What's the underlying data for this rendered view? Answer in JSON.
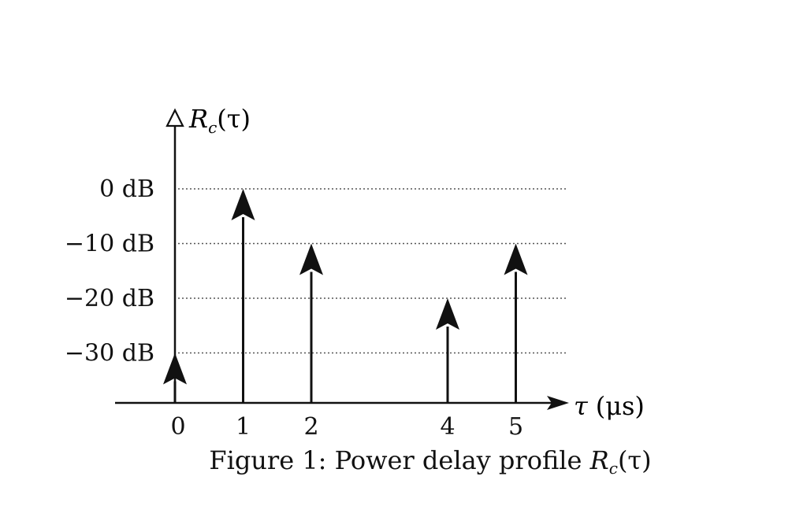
{
  "chart_data": {
    "type": "stem",
    "x": [
      0,
      1,
      2,
      4,
      5
    ],
    "values": [
      -30,
      0,
      -10,
      -20,
      -10
    ],
    "x_ticks": [
      "0",
      "1",
      "2",
      "4",
      "5"
    ],
    "y_ticks": [
      0,
      -10,
      -20,
      -30
    ],
    "y_tick_labels": [
      "0 dB",
      "−10 dB",
      "−20 dB",
      "−30 dB"
    ],
    "xlabel": {
      "symbol": "τ",
      "unit": "(μs)"
    },
    "ylabel": {
      "main": "R",
      "sub": "c",
      "arg": "(τ)"
    },
    "grid": "horizontal dotted at y ticks",
    "caption": {
      "prefix": "Figure 1: Power delay profile ",
      "symbol": "R",
      "sub": "c",
      "arg": "(τ)"
    }
  },
  "colors": {
    "ink": "#111111",
    "grid": "#555555",
    "background": "#ffffff"
  }
}
